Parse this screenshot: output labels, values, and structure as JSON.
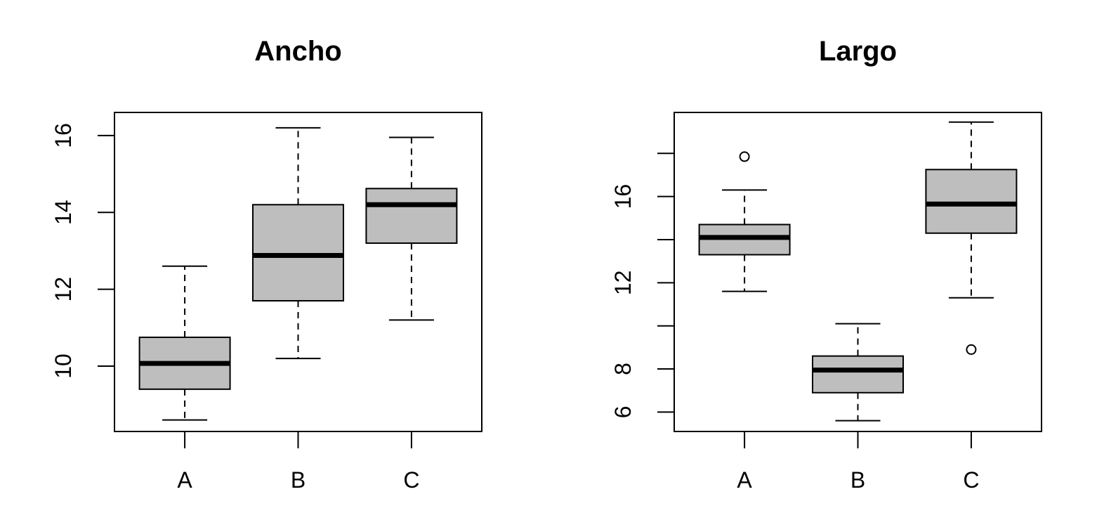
{
  "chart_data": [
    {
      "type": "boxplot",
      "title": "Ancho",
      "xlabel": "",
      "ylabel": "",
      "categories": [
        "A",
        "B",
        "C"
      ],
      "ylim": [
        8.3,
        16.6
      ],
      "yticks": [
        10,
        12,
        14,
        16
      ],
      "box_color": "#bebebe",
      "grid": false,
      "boxes": [
        {
          "category": "A",
          "whisker_low": 8.6,
          "q1": 9.4,
          "median": 10.07,
          "q3": 10.75,
          "whisker_high": 12.6,
          "outliers": []
        },
        {
          "category": "B",
          "whisker_low": 10.2,
          "q1": 11.7,
          "median": 12.88,
          "q3": 14.2,
          "whisker_high": 16.2,
          "outliers": []
        },
        {
          "category": "C",
          "whisker_low": 11.2,
          "q1": 13.2,
          "median": 14.2,
          "q3": 14.62,
          "whisker_high": 15.95,
          "outliers": []
        }
      ]
    },
    {
      "type": "boxplot",
      "title": "Largo",
      "xlabel": "",
      "ylabel": "",
      "categories": [
        "A",
        "B",
        "C"
      ],
      "ylim": [
        5.1,
        19.9
      ],
      "yticks": [
        6,
        8,
        10,
        12,
        14,
        16,
        18
      ],
      "ytick_labels": [
        "6",
        "8",
        "",
        "12",
        "",
        "16",
        ""
      ],
      "box_color": "#bebebe",
      "grid": false,
      "boxes": [
        {
          "category": "A",
          "whisker_low": 11.6,
          "q1": 13.3,
          "median": 14.1,
          "q3": 14.7,
          "whisker_high": 16.3,
          "outliers": [
            17.85
          ]
        },
        {
          "category": "B",
          "whisker_low": 5.6,
          "q1": 6.9,
          "median": 7.95,
          "q3": 8.6,
          "whisker_high": 10.1,
          "outliers": []
        },
        {
          "category": "C",
          "whisker_low": 11.3,
          "q1": 14.3,
          "median": 15.65,
          "q3": 17.25,
          "whisker_high": 19.45,
          "outliers": [
            8.9
          ]
        }
      ]
    }
  ]
}
